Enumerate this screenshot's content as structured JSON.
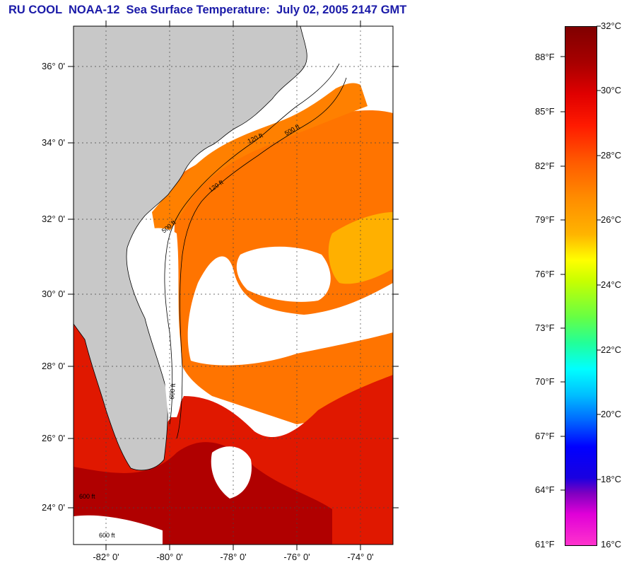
{
  "title": "RU COOL  NOAA-12  Sea Surface Temperature:  July 02, 2005 2147 GMT",
  "latitude_labels": [
    "36° 0'",
    "34° 0'",
    "32° 0'",
    "30° 0'",
    "28° 0'",
    "26° 0'",
    "24° 0'"
  ],
  "longitude_labels": [
    "-82° 0'",
    "-80° 0'",
    "-78° 0'",
    "-76° 0'",
    "-74° 0'"
  ],
  "contour_labels": [
    "120 ft",
    "500 ft",
    "120 ft",
    "500 ft",
    "600 ft",
    "600 ft",
    "600 ft"
  ],
  "colorbar": {
    "fahrenheit_labels": [
      "88°F",
      "85°F",
      "82°F",
      "79°F",
      "76°F",
      "73°F",
      "70°F",
      "67°F",
      "64°F",
      "61°F"
    ],
    "celsius_labels": [
      "32°C",
      "30°C",
      "28°C",
      "26°C",
      "24°C",
      "22°C",
      "20°C",
      "18°C",
      "16°C"
    ]
  },
  "colors": {
    "land": "#c8c8c8",
    "cloud_no_data": "#ffffff",
    "warm_water": "#ff7a00",
    "hot_water": "#b00000",
    "title": "#1a1aa8"
  }
}
